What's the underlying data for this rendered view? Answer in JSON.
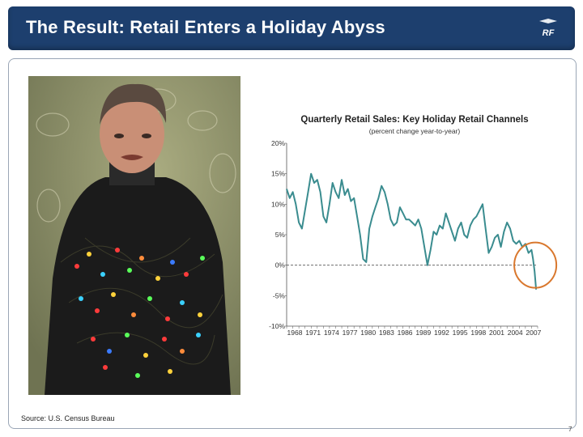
{
  "header": {
    "title": "The Result: Retail Enters a Holiday Abyss",
    "logo_text": "RF"
  },
  "colors": {
    "header_bg": "#1d3f6e",
    "series": "#3a8c8f",
    "highlight_circle": "#d9782e"
  },
  "photo": {
    "icon": "man-with-christmas-lights-photo"
  },
  "chart_data": {
    "type": "line",
    "title": "Quarterly Retail Sales: Key Holiday Retail Channels",
    "subtitle": "(percent change year-to-year)",
    "ylim": [
      -10,
      20
    ],
    "yticks": [
      "20%",
      "15%",
      "10%",
      "5%",
      "0%",
      "-5%",
      "-10%"
    ],
    "x_tick_labels": [
      "1968",
      "1971",
      "1974",
      "1977",
      "1980",
      "1983",
      "1986",
      "1989",
      "1992",
      "1995",
      "1998",
      "2001",
      "2004",
      "2007"
    ],
    "xlim": [
      1968,
      2009
    ],
    "reference_line": 0,
    "series": [
      {
        "x": [
          1968.0,
          1968.5,
          1969.0,
          1969.5,
          1970.0,
          1970.5,
          1971.0,
          1971.5,
          1972.0,
          1972.5,
          1973.0,
          1973.5,
          1974.0,
          1974.5,
          1975.0,
          1975.5,
          1976.0,
          1976.5,
          1977.0,
          1977.5,
          1978.0,
          1978.5,
          1979.0,
          1979.5,
          1980.0,
          1980.5,
          1981.0,
          1981.5,
          1982.0,
          1982.5,
          1983.0,
          1983.5,
          1984.0,
          1984.5,
          1985.0,
          1985.5,
          1986.0,
          1986.5,
          1987.0,
          1987.5,
          1988.0,
          1988.5,
          1989.0,
          1989.5,
          1990.0,
          1990.5,
          1991.0,
          1991.5,
          1992.0,
          1992.5,
          1993.0,
          1993.5,
          1994.0,
          1994.5,
          1995.0,
          1995.5,
          1996.0,
          1996.5,
          1997.0,
          1997.5,
          1998.0,
          1998.5,
          1999.0,
          1999.5,
          2000.0,
          2000.5,
          2001.0,
          2001.5,
          2002.0,
          2002.5,
          2003.0,
          2003.5,
          2004.0,
          2004.5,
          2005.0,
          2005.5,
          2006.0,
          2006.5,
          2007.0,
          2007.5,
          2008.0,
          2008.25,
          2008.5,
          2008.75
        ],
        "values": [
          12.5,
          11.0,
          12.0,
          10.0,
          7.0,
          6.0,
          9.0,
          12.0,
          15.0,
          13.5,
          14.0,
          12.0,
          8.0,
          7.0,
          10.0,
          13.5,
          12.0,
          11.0,
          14.0,
          11.5,
          12.5,
          10.5,
          11.0,
          8.0,
          5.0,
          1.0,
          0.5,
          6.0,
          8.0,
          9.5,
          11.0,
          13.0,
          12.0,
          10.0,
          7.5,
          6.5,
          7.0,
          9.5,
          8.5,
          7.5,
          7.5,
          7.0,
          6.5,
          7.5,
          6.0,
          3.0,
          0.0,
          2.5,
          5.5,
          5.0,
          6.5,
          6.0,
          8.5,
          7.0,
          5.5,
          4.0,
          6.0,
          7.0,
          5.0,
          4.5,
          6.5,
          7.5,
          8.0,
          9.0,
          10.0,
          6.0,
          2.0,
          3.0,
          4.5,
          5.0,
          3.0,
          5.5,
          7.0,
          6.0,
          4.0,
          3.5,
          4.0,
          3.0,
          3.5,
          2.0,
          2.5,
          1.0,
          -1.0,
          -4.0
        ]
      }
    ],
    "annotation": "circle-highlighting-2008-drop"
  },
  "footer": {
    "source": "Source: U.S. Census Bureau",
    "page_number": "7"
  }
}
